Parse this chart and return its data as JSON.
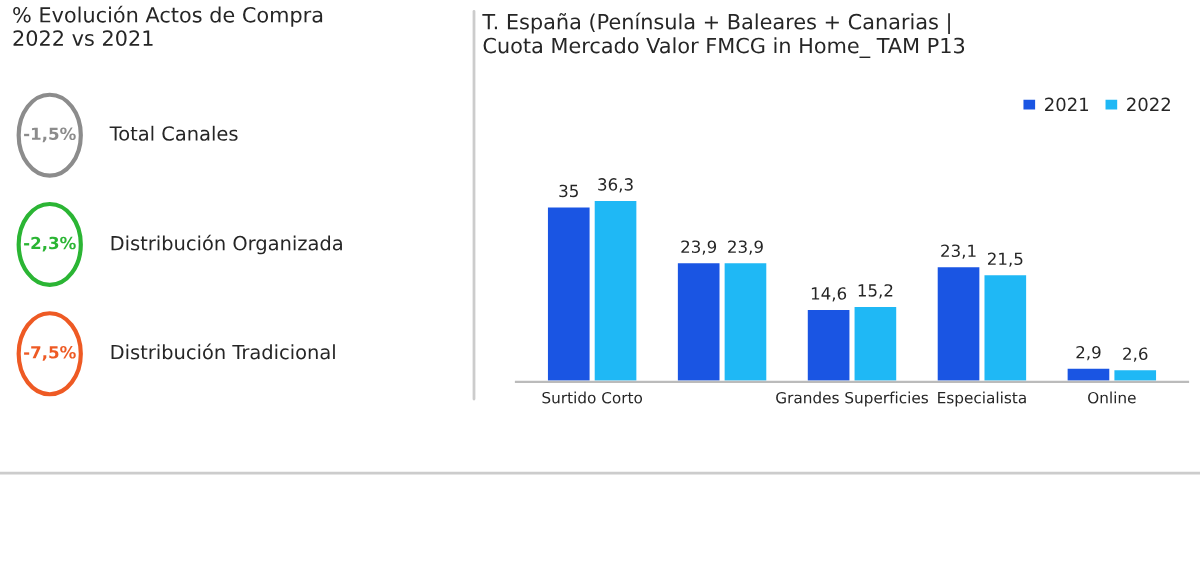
{
  "chart_data": [
    {
      "type": "other",
      "title": "% Evolución Actos de Compra\n2022 vs 2021",
      "categories": [
        "Total Canales",
        "Distribución Organizada",
        "Distribución Tradicional"
      ],
      "value_labels": [
        "-1,5%",
        "-2,3%",
        "-7,5%"
      ],
      "colors": [
        "#8c8c8c",
        "#2bb534",
        "#ee5a24"
      ]
    },
    {
      "type": "bar",
      "title": "T. España (Península + Baleares + Canarias |\nCuota Mercado Valor FMCG in Home_ TAM P13",
      "categories": [
        "Surtido Corto",
        null,
        "Grandes Superficies",
        "Especialista",
        "Online"
      ],
      "legend": "top right",
      "series": [
        {
          "name": "2021",
          "color": "#1a55e3",
          "values": [
            35,
            23.9,
            14.6,
            23.1,
            2.9
          ],
          "value_labels": [
            "35",
            "23,9",
            "14,6",
            "23,1",
            "2,9"
          ]
        },
        {
          "name": "2022",
          "color": "#1fb8f5",
          "values": [
            36.3,
            23.9,
            15.2,
            21.5,
            2.6
          ],
          "value_labels": [
            "36,3",
            "23,9",
            "15,2",
            "21,5",
            "2,6"
          ]
        }
      ]
    }
  ]
}
